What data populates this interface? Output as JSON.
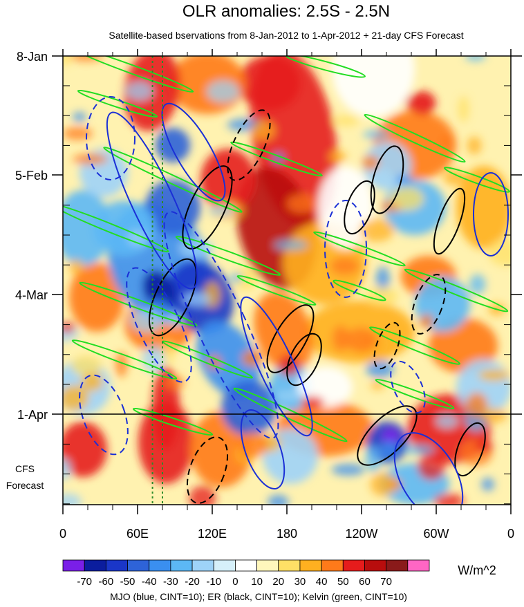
{
  "chart_data": {
    "type": "heatmap",
    "title": "OLR anomalies: 2.5S - 2.5N",
    "subtitle": "Satellite-based bservations from 8-Jan-2012 to 1-Apr-2012 + 21-day CFS Forecast",
    "x_ticks": [
      "0",
      "60E",
      "120E",
      "180",
      "120W",
      "60W",
      "0"
    ],
    "x_range": [
      0,
      360
    ],
    "y_ticks": [
      "8-Jan",
      "5-Feb",
      "4-Mar",
      "1-Apr"
    ],
    "forecast_label": [
      "CFS",
      "Forecast"
    ],
    "colorbar": {
      "labels": [
        "-70",
        "-60",
        "-50",
        "-40",
        "-30",
        "-20",
        "-10",
        "0",
        "10",
        "20",
        "30",
        "40",
        "50",
        "60",
        "70"
      ],
      "colors": [
        "#7a1fe8",
        "#0b1d9e",
        "#1a36c8",
        "#2e63d8",
        "#3a8ff0",
        "#5cb8f5",
        "#9ed3f8",
        "#d6f0fa",
        "#ffffff",
        "#fff7bc",
        "#ffe066",
        "#ffb020",
        "#ff7a1a",
        "#e61c1c",
        "#b80d0d",
        "#8a1a1a",
        "#ff66c4"
      ],
      "units": "W/m^2"
    },
    "footnote": "MJO (blue, CINT=10); ER (black, CINT=10); Kelvin (green, CINT=10)",
    "series_colors": {
      "mjo": "#1a2fd6",
      "er": "#000000",
      "kelvin": "#22dd22",
      "reference": "#2a8a2a"
    },
    "reference_lines_lon": [
      72,
      80
    ]
  }
}
